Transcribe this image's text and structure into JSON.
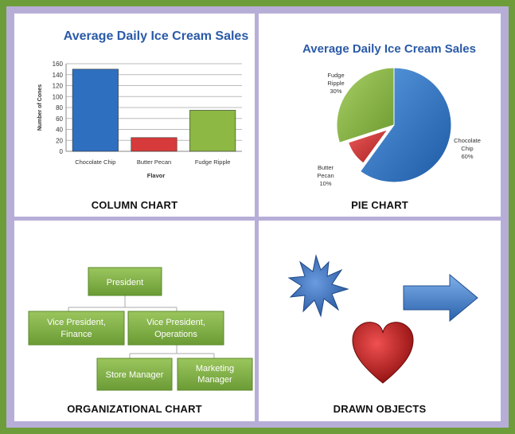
{
  "panels": {
    "column_caption": "COLUMN CHART",
    "pie_caption": "PIE CHART",
    "org_caption": "ORGANIZATIONAL CHART",
    "drawn_caption": "DRAWN OBJECTS"
  },
  "chart_data": [
    {
      "type": "bar",
      "title": "Average Daily Ice Cream Sales",
      "xlabel": "Flavor",
      "ylabel": "Number of Cones",
      "categories": [
        "Chocolate Chip",
        "Butter Pecan",
        "Fudge Ripple"
      ],
      "values": [
        150,
        25,
        75
      ],
      "ylim": [
        0,
        160
      ],
      "yticks": [
        0,
        20,
        40,
        60,
        80,
        100,
        120,
        140,
        160
      ],
      "grid": true,
      "colors": [
        "#2e6fc0",
        "#d63a3a",
        "#8cb843"
      ]
    },
    {
      "type": "pie",
      "title": "Average Daily Ice Cream Sales",
      "slices": [
        {
          "label": "Chocolate Chip",
          "value": 60,
          "pct": "60%",
          "color": "#2e73c4"
        },
        {
          "label": "Butter Pecan",
          "value": 10,
          "pct": "10%",
          "color": "#d23b3b"
        },
        {
          "label": "Fudge Ripple",
          "value": 30,
          "pct": "30%",
          "color": "#8dbd45"
        }
      ]
    }
  ],
  "org_chart": {
    "president": "President",
    "vp_finance": [
      "Vice President,",
      "Finance"
    ],
    "vp_operations": [
      "Vice President,",
      "Operations"
    ],
    "store_manager": "Store Manager",
    "marketing_manager": [
      "Marketing",
      "Manager"
    ]
  },
  "colors": {
    "background": "#6d9c3a",
    "frame": "#b7aed8",
    "title_blue": "#2a5aa7",
    "org_green": "#7dab45",
    "star_blue": "#3b6fb8",
    "heart_red": "#c21c1c"
  },
  "drawn_objects": [
    "star-shape",
    "arrow-shape",
    "heart-shape"
  ]
}
